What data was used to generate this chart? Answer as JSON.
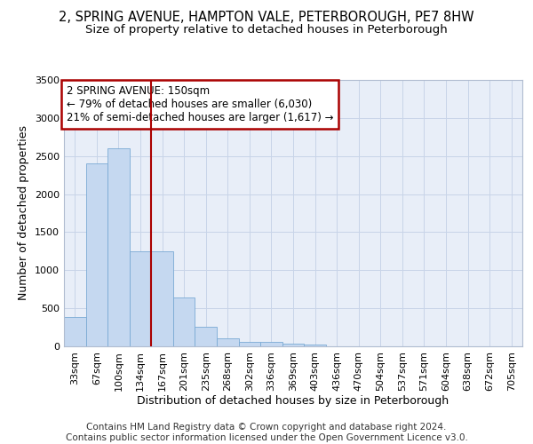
{
  "title_line1": "2, SPRING AVENUE, HAMPTON VALE, PETERBOROUGH, PE7 8HW",
  "title_line2": "Size of property relative to detached houses in Peterborough",
  "xlabel": "Distribution of detached houses by size in Peterborough",
  "ylabel": "Number of detached properties",
  "categories": [
    "33sqm",
    "67sqm",
    "100sqm",
    "134sqm",
    "167sqm",
    "201sqm",
    "235sqm",
    "268sqm",
    "302sqm",
    "336sqm",
    "369sqm",
    "403sqm",
    "436sqm",
    "470sqm",
    "504sqm",
    "537sqm",
    "571sqm",
    "604sqm",
    "638sqm",
    "672sqm",
    "705sqm"
  ],
  "values": [
    390,
    2400,
    2600,
    1250,
    1250,
    640,
    260,
    100,
    60,
    55,
    40,
    20,
    0,
    0,
    0,
    0,
    0,
    0,
    0,
    0,
    0
  ],
  "bar_color": "#c5d8f0",
  "bar_edge_color": "#7aaad4",
  "vline_color": "#aa0000",
  "annotation_text": "2 SPRING AVENUE: 150sqm\n← 79% of detached houses are smaller (6,030)\n21% of semi-detached houses are larger (1,617) →",
  "annotation_box_color": "#ffffff",
  "annotation_box_edge": "#aa0000",
  "ylim": [
    0,
    3500
  ],
  "yticks": [
    0,
    500,
    1000,
    1500,
    2000,
    2500,
    3000,
    3500
  ],
  "footer_line1": "Contains HM Land Registry data © Crown copyright and database right 2024.",
  "footer_line2": "Contains public sector information licensed under the Open Government Licence v3.0.",
  "plot_bg_color": "#e8eef8",
  "title_fontsize": 10.5,
  "subtitle_fontsize": 9.5,
  "axis_label_fontsize": 9,
  "tick_fontsize": 8,
  "footer_fontsize": 7.5,
  "vline_xindex": 3.5
}
